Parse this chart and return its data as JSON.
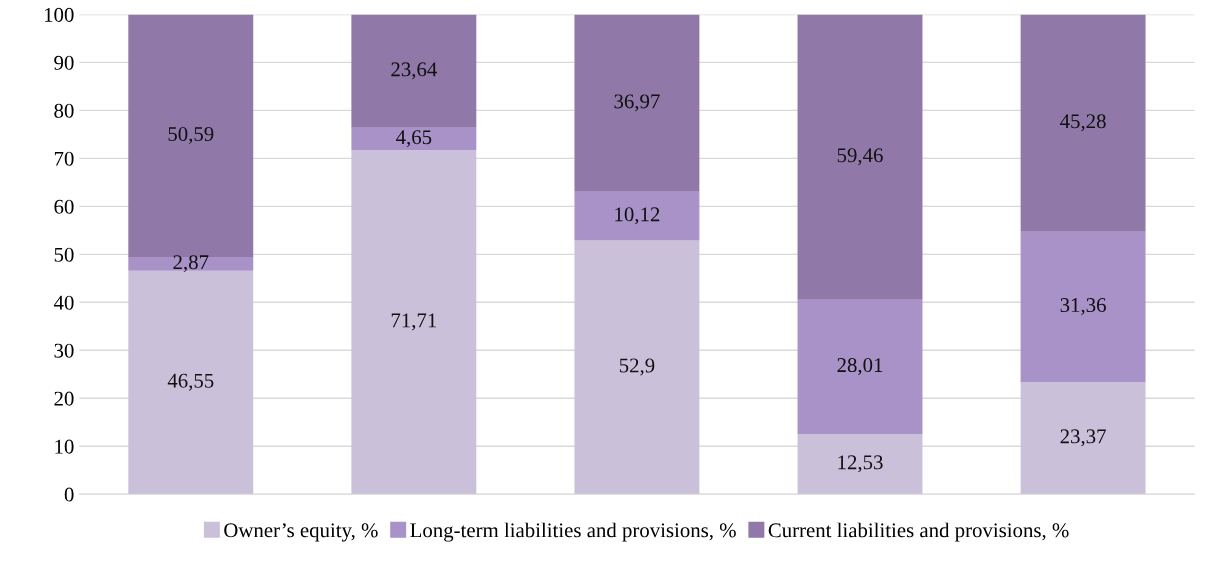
{
  "chart_data": {
    "type": "bar",
    "stacked": true,
    "categories": [
      null,
      null,
      null,
      null,
      null
    ],
    "series": [
      {
        "name": "Owner’s equity, %",
        "color": "#cbc0da",
        "values": [
          46.55,
          71.71,
          52.9,
          12.53,
          23.37
        ],
        "value_labels": [
          "46,55",
          "71,71",
          "52,9",
          "12,53",
          "23,37"
        ]
      },
      {
        "name": "Long-term liabilities and provisions, %",
        "color": "#a992c8",
        "values": [
          2.87,
          4.65,
          10.12,
          28.01,
          31.36
        ],
        "value_labels": [
          "2,87",
          "4,65",
          "10,12",
          "28,01",
          "31,36"
        ]
      },
      {
        "name": "Current liabilities and provisions, %",
        "color": "#9079a8",
        "values": [
          50.59,
          23.64,
          36.97,
          59.46,
          45.28
        ],
        "value_labels": [
          "50,59",
          "23,64",
          "36,97",
          "59,46",
          "45,28"
        ]
      }
    ],
    "ylim": [
      0,
      100
    ],
    "yticks": [
      0,
      10,
      20,
      30,
      40,
      50,
      60,
      70,
      80,
      90,
      100
    ],
    "grid": "y",
    "legend": "bottom"
  }
}
